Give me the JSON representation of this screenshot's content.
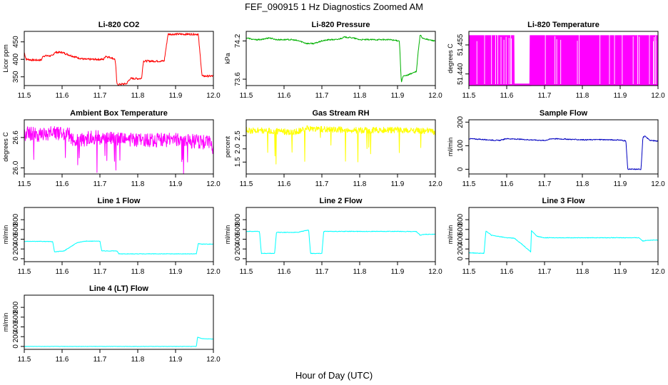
{
  "figure": {
    "title": "FEF_090915  1 Hz Diagnostics Zoomed AM",
    "xlabel": "Hour of Day (UTC)"
  },
  "chart_data": [
    {
      "type": "line",
      "title": "Li-820 CO2",
      "ylabel": "Licor ppm",
      "color": "#ff0000",
      "xlim": [
        11.5,
        12.0
      ],
      "ylim": [
        325,
        480
      ],
      "xticks": [
        11.5,
        11.6,
        11.7,
        11.8,
        11.9,
        12.0
      ],
      "yticks": [
        350,
        400,
        450
      ],
      "noise": 3,
      "series": [
        {
          "name": "CO2",
          "x": [
            11.5,
            11.505,
            11.51,
            11.52,
            11.545,
            11.55,
            11.575,
            11.58,
            11.6,
            11.62,
            11.64,
            11.66,
            11.68,
            11.7,
            11.71,
            11.715,
            11.72,
            11.73,
            11.74,
            11.742,
            11.745,
            11.77,
            11.78,
            11.81,
            11.815,
            11.84,
            11.845,
            11.87,
            11.88,
            11.9,
            11.96,
            11.97,
            12.0
          ],
          "y": [
            420,
            400,
            400,
            398,
            398,
            410,
            410,
            420,
            420,
            412,
            405,
            400,
            400,
            400,
            400,
            410,
            407,
            405,
            400,
            380,
            328,
            330,
            345,
            345,
            395,
            395,
            395,
            395,
            472,
            472,
            472,
            352,
            352
          ]
        }
      ]
    },
    {
      "type": "line",
      "title": "Li-820 Pressure",
      "ylabel": "kPa",
      "color": "#00b000",
      "xlim": [
        11.5,
        12.0
      ],
      "ylim": [
        73.5,
        74.35
      ],
      "xticks": [
        11.5,
        11.6,
        11.7,
        11.8,
        11.9,
        12.0
      ],
      "yticks": [
        73.6,
        74.2
      ],
      "ytickfmt": "1",
      "noise": 0.01,
      "series": [
        {
          "name": "Pressure",
          "x": [
            11.5,
            11.52,
            11.54,
            11.56,
            11.58,
            11.6,
            11.62,
            11.64,
            11.66,
            11.68,
            11.7,
            11.72,
            11.74,
            11.76,
            11.78,
            11.8,
            11.82,
            11.85,
            11.88,
            11.905,
            11.91,
            11.915,
            11.92,
            11.95,
            11.955,
            11.96,
            11.965,
            11.98,
            12.0
          ],
          "y": [
            74.25,
            74.22,
            74.22,
            74.25,
            74.22,
            74.22,
            74.22,
            74.2,
            74.16,
            74.16,
            74.2,
            74.22,
            74.22,
            74.26,
            74.25,
            74.22,
            74.22,
            74.22,
            74.22,
            74.2,
            73.55,
            73.65,
            73.65,
            73.72,
            74.05,
            74.3,
            74.25,
            74.22,
            74.2
          ]
        }
      ]
    },
    {
      "type": "area",
      "title": "Li-820 Temperature",
      "ylabel": "degrees C",
      "color": "#ff00ff",
      "xlim": [
        11.5,
        12.0
      ],
      "ylim": [
        51.434,
        51.462
      ],
      "xticks": [
        11.5,
        11.6,
        11.7,
        11.8,
        11.9,
        12.0
      ],
      "yticks": [
        51.44,
        51.455
      ],
      "ytickfmt": "3",
      "series": [
        {
          "name": "Temperature",
          "x": [
            11.5,
            11.62,
            11.621,
            11.66,
            11.661,
            12.0
          ],
          "y": [
            51.46,
            51.46,
            51.435,
            51.435,
            51.46,
            51.46
          ]
        }
      ]
    },
    {
      "type": "line",
      "title": "Ambient Box Temperature",
      "ylabel": "degrees C",
      "color": "#ff00ff",
      "xlim": [
        11.5,
        12.0
      ],
      "ylim": [
        25.88,
        26.95
      ],
      "xticks": [
        11.5,
        11.6,
        11.7,
        11.8,
        11.9,
        12.0
      ],
      "yticks": [
        26.0,
        26.6
      ],
      "ytickfmt": "1",
      "noise": 0.14,
      "series": [
        {
          "name": "Box Temperature",
          "x": [
            11.5,
            11.55,
            11.58,
            11.62,
            11.625,
            11.665,
            11.67,
            11.72,
            11.8,
            11.9,
            11.99,
            12.0
          ],
          "y": [
            26.68,
            26.65,
            26.7,
            26.65,
            26.55,
            26.55,
            26.62,
            26.58,
            26.55,
            26.55,
            26.5,
            26.4
          ]
        }
      ]
    },
    {
      "type": "line",
      "title": "Gas Stream RH",
      "ylabel": "percent",
      "color": "#ffff00",
      "xlim": [
        11.5,
        12.0
      ],
      "ylim": [
        1.05,
        3.1
      ],
      "xticks": [
        11.5,
        11.6,
        11.7,
        11.8,
        11.9,
        12.0
      ],
      "yticks": [
        1.5,
        2.0,
        2.5
      ],
      "ytickfmt": "1",
      "noise": 0.12,
      "series": [
        {
          "name": "RH",
          "x": [
            11.5,
            11.55,
            11.6,
            11.62,
            11.64,
            11.66,
            11.7,
            11.75,
            11.8,
            11.85,
            11.9,
            11.95,
            11.99,
            12.0
          ],
          "y": [
            2.7,
            2.68,
            2.66,
            2.6,
            2.68,
            2.78,
            2.74,
            2.72,
            2.7,
            2.7,
            2.72,
            2.7,
            2.68,
            2.6
          ]
        }
      ]
    },
    {
      "type": "line",
      "title": "Sample Flow",
      "ylabel": "ml/min",
      "color": "#0000c0",
      "xlim": [
        11.5,
        12.0
      ],
      "ylim": [
        -20,
        210
      ],
      "xticks": [
        11.5,
        11.6,
        11.7,
        11.8,
        11.9,
        12.0
      ],
      "yticks": [
        0,
        100,
        200
      ],
      "noise": 2,
      "series": [
        {
          "name": "Sample Flow",
          "x": [
            11.5,
            11.55,
            11.58,
            11.6,
            11.62,
            11.65,
            11.7,
            11.72,
            11.8,
            11.85,
            11.9,
            11.915,
            11.92,
            11.955,
            11.96,
            11.965,
            11.98,
            12.0
          ],
          "y": [
            130,
            125,
            122,
            130,
            128,
            126,
            122,
            130,
            125,
            126,
            124,
            120,
            0,
            0,
            135,
            140,
            122,
            120
          ]
        }
      ]
    },
    {
      "type": "line",
      "title": "Line 1 Flow",
      "ylabel": "ml/min",
      "color": "#00ffff",
      "xlim": [
        11.5,
        12.0
      ],
      "ylim": [
        -60,
        1050
      ],
      "xticks": [
        11.5,
        11.6,
        11.7,
        11.8,
        11.9,
        12.0
      ],
      "yticks": [
        0,
        200,
        400,
        600,
        800
      ],
      "noise": 5,
      "series": [
        {
          "name": "Line 1",
          "x": [
            11.5,
            11.55,
            11.575,
            11.58,
            11.605,
            11.64,
            11.66,
            11.7,
            11.705,
            11.745,
            11.75,
            11.955,
            11.96,
            11.97,
            12.0
          ],
          "y": [
            355,
            355,
            350,
            140,
            160,
            330,
            360,
            360,
            160,
            160,
            100,
            100,
            310,
            300,
            300
          ]
        }
      ]
    },
    {
      "type": "line",
      "title": "Line 2 Flow",
      "ylabel": "ml/min",
      "color": "#00ffff",
      "xlim": [
        11.5,
        12.0
      ],
      "ylim": [
        -60,
        1050
      ],
      "xticks": [
        11.5,
        11.6,
        11.7,
        11.8,
        11.9,
        12.0
      ],
      "yticks": [
        0,
        200,
        400,
        600,
        800
      ],
      "noise": 6,
      "series": [
        {
          "name": "Line 2",
          "x": [
            11.5,
            11.535,
            11.54,
            11.575,
            11.58,
            11.635,
            11.665,
            11.67,
            11.7,
            11.705,
            11.8,
            11.9,
            11.95,
            11.96,
            11.97,
            12.0
          ],
          "y": [
            560,
            560,
            110,
            110,
            540,
            540,
            590,
            110,
            110,
            560,
            560,
            560,
            555,
            480,
            500,
            500
          ]
        }
      ]
    },
    {
      "type": "line",
      "title": "Line 3 Flow",
      "ylabel": "ml/min",
      "color": "#00ffff",
      "xlim": [
        11.5,
        12.0
      ],
      "ylim": [
        -60,
        1050
      ],
      "xticks": [
        11.5,
        11.6,
        11.7,
        11.8,
        11.9,
        12.0
      ],
      "yticks": [
        0,
        200,
        400,
        600,
        800
      ],
      "noise": 6,
      "series": [
        {
          "name": "Line 3",
          "x": [
            11.5,
            11.54,
            11.545,
            11.56,
            11.6,
            11.62,
            11.64,
            11.664,
            11.665,
            11.68,
            11.7,
            11.8,
            11.9,
            11.95,
            11.96,
            11.97,
            12.0
          ],
          "y": [
            120,
            110,
            570,
            480,
            430,
            420,
            300,
            140,
            580,
            460,
            430,
            430,
            430,
            430,
            360,
            380,
            380
          ]
        }
      ]
    },
    {
      "type": "line",
      "title": "Line 4 (LT) Flow",
      "ylabel": "ml/min",
      "color": "#00ffff",
      "xlim": [
        11.5,
        12.0
      ],
      "ylim": [
        -60,
        1050
      ],
      "xticks": [
        11.5,
        11.6,
        11.7,
        11.8,
        11.9,
        12.0
      ],
      "yticks": [
        0,
        200,
        400,
        600,
        800
      ],
      "noise": 3,
      "series": [
        {
          "name": "Line 4",
          "x": [
            11.5,
            11.8,
            11.955,
            11.958,
            11.97,
            12.0
          ],
          "y": [
            0,
            0,
            0,
            190,
            160,
            150
          ]
        }
      ]
    }
  ]
}
